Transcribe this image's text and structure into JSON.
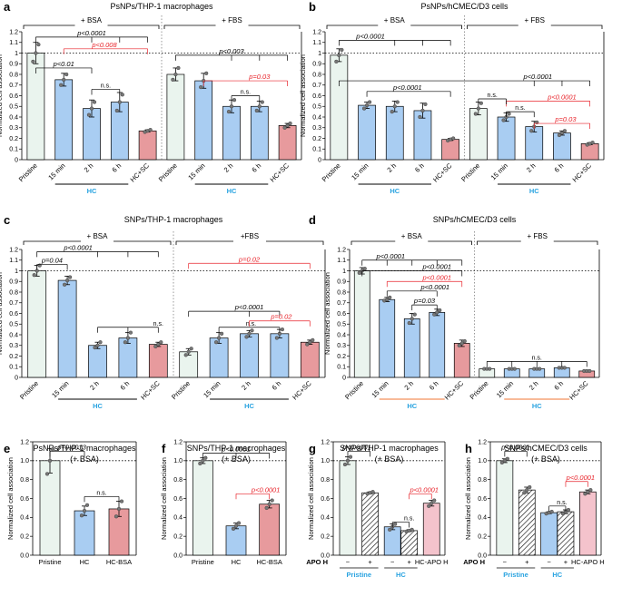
{
  "colors": {
    "pristine": "#eaf4ee",
    "hc": "#a9cdf2",
    "hcsc": "#e79a9d",
    "hcbsa": "#e79a9d",
    "hcapo": "#f4c3cc",
    "sig_black": "#000000",
    "sig_red": "#e8232a",
    "hc_label": "#29a3e0",
    "hc_underline_orange": "#f07533"
  },
  "chart_data": [
    {
      "id": "a",
      "panel_label": "a",
      "title": "PsNPs/THP-1 macrophages",
      "type": "bar",
      "ylabel": "Normalized cell association",
      "ylim": [
        0,
        1.2
      ],
      "yticks": [
        "0",
        "0.1",
        "0.2",
        "0.3",
        "0.4",
        "0.5",
        "0.6",
        "0.7",
        "0.8",
        "0.9",
        "1",
        "1.1",
        "1.2"
      ],
      "groups": [
        {
          "label": "+ BSA"
        },
        {
          "label": "+ FBS"
        }
      ],
      "categories": [
        "Pristine",
        "15 min",
        "2 h",
        "6 h",
        "HC+SC",
        "Pristine",
        "15 min",
        "2 h",
        "6 h",
        "HC+SC"
      ],
      "values": [
        1.0,
        0.75,
        0.48,
        0.54,
        0.27,
        0.8,
        0.74,
        0.5,
        0.5,
        0.32
      ],
      "sd": [
        0.1,
        0.06,
        0.08,
        0.09,
        0.01,
        0.06,
        0.07,
        0.06,
        0.05,
        0.02
      ],
      "points": [
        [
          0.92,
          1.0,
          1.08
        ],
        [
          0.7,
          0.75,
          0.8
        ],
        [
          0.42,
          0.48,
          0.54
        ],
        [
          0.46,
          0.54,
          0.61
        ],
        [
          0.26,
          0.27,
          0.28
        ],
        [
          0.75,
          0.8,
          0.86
        ],
        [
          0.68,
          0.74,
          0.81
        ],
        [
          0.45,
          0.5,
          0.56
        ],
        [
          0.46,
          0.5,
          0.54
        ],
        [
          0.3,
          0.32,
          0.34
        ]
      ],
      "color_keys": [
        "pristine",
        "hc",
        "hc",
        "hc",
        "hcsc",
        "pristine",
        "hc",
        "hc",
        "hc",
        "hcsc"
      ],
      "hatched": [
        false,
        false,
        false,
        false,
        false,
        false,
        false,
        false,
        false,
        false
      ],
      "hc_label": "HC",
      "annotations": [
        {
          "text": "p<0.0001",
          "color": "black"
        },
        {
          "text": "p<0.008",
          "color": "red"
        },
        {
          "text": "p<0.01",
          "color": "black"
        },
        {
          "text": "n.s.",
          "color": "black"
        },
        {
          "text": "p<0.003",
          "color": "black"
        },
        {
          "text": "p=0.03",
          "color": "red"
        },
        {
          "text": "n.s.",
          "color": "black"
        }
      ]
    },
    {
      "id": "b",
      "panel_label": "b",
      "title": "PsNPs/hCMEC/D3 cells",
      "type": "bar",
      "ylabel": "Normalized cell association",
      "ylim": [
        0,
        1.2
      ],
      "yticks": [
        "0",
        "0.1",
        "0.2",
        "0.3",
        "0.4",
        "0.5",
        "0.6",
        "0.7",
        "0.8",
        "0.9",
        "1",
        "1.1",
        "1.2"
      ],
      "groups": [
        {
          "label": "+ BSA"
        },
        {
          "label": "+ FBS"
        }
      ],
      "categories": [
        "Pristine",
        "15 min",
        "2 h",
        "6 h",
        "HC+SC",
        "Pristine",
        "15 min",
        "2 h",
        "6 h",
        "HC+SC"
      ],
      "values": [
        0.98,
        0.51,
        0.5,
        0.46,
        0.19,
        0.48,
        0.4,
        0.31,
        0.25,
        0.15
      ],
      "sd": [
        0.06,
        0.03,
        0.05,
        0.07,
        0.01,
        0.06,
        0.04,
        0.05,
        0.02,
        0.01
      ],
      "points": [
        [
          0.92,
          0.98,
          1.03
        ],
        [
          0.48,
          0.51,
          0.54
        ],
        [
          0.45,
          0.5,
          0.54
        ],
        [
          0.4,
          0.46,
          0.52
        ],
        [
          0.18,
          0.19,
          0.2
        ],
        [
          0.43,
          0.48,
          0.53
        ],
        [
          0.37,
          0.4,
          0.43
        ],
        [
          0.27,
          0.31,
          0.35
        ],
        [
          0.23,
          0.25,
          0.27
        ],
        [
          0.14,
          0.15,
          0.16
        ]
      ],
      "color_keys": [
        "pristine",
        "hc",
        "hc",
        "hc",
        "hcsc",
        "pristine",
        "hc",
        "hc",
        "hc",
        "hcsc"
      ],
      "hatched": [
        false,
        false,
        false,
        false,
        false,
        false,
        false,
        false,
        false,
        false
      ],
      "hc_label": "HC",
      "annotations": [
        {
          "text": "p<0.0001",
          "color": "black"
        },
        {
          "text": "p<0.0001",
          "color": "black"
        },
        {
          "text": "p<0.0001",
          "color": "black"
        },
        {
          "text": "p<0.0001",
          "color": "red"
        },
        {
          "text": "n.s.",
          "color": "black"
        },
        {
          "text": "n.s.",
          "color": "black"
        },
        {
          "text": "p=0.03",
          "color": "red"
        }
      ]
    },
    {
      "id": "c",
      "panel_label": "c",
      "title": "SNPs/THP-1 macrophages",
      "type": "bar",
      "ylabel": "Normalized cell association",
      "ylim": [
        0,
        1.2
      ],
      "yticks": [
        "0",
        "0.1",
        "0.2",
        "0.3",
        "0.4",
        "0.5",
        "0.6",
        "0.7",
        "0.8",
        "0.9",
        "1",
        "1.1",
        "1.2"
      ],
      "groups": [
        {
          "label": "+ BSA"
        },
        {
          "label": "+FBS"
        }
      ],
      "categories": [
        "Pristine",
        "15 min",
        "2 h",
        "6 h",
        "HC+SC",
        "Pristine",
        "15 min",
        "2 h",
        "6 h",
        "HC+SC"
      ],
      "values": [
        1.0,
        0.91,
        0.3,
        0.37,
        0.31,
        0.24,
        0.37,
        0.41,
        0.41,
        0.33
      ],
      "sd": [
        0.05,
        0.04,
        0.03,
        0.05,
        0.02,
        0.03,
        0.05,
        0.03,
        0.04,
        0.02
      ],
      "points": [
        [
          0.96,
          1.0,
          1.05
        ],
        [
          0.87,
          0.91,
          0.94
        ],
        [
          0.28,
          0.3,
          0.33
        ],
        [
          0.33,
          0.37,
          0.42
        ],
        [
          0.29,
          0.31,
          0.33
        ],
        [
          0.21,
          0.24,
          0.27
        ],
        [
          0.33,
          0.37,
          0.41
        ],
        [
          0.38,
          0.41,
          0.44
        ],
        [
          0.37,
          0.41,
          0.45
        ],
        [
          0.31,
          0.33,
          0.35
        ]
      ],
      "color_keys": [
        "pristine",
        "hc",
        "hc",
        "hc",
        "hcsc",
        "pristine",
        "hc",
        "hc",
        "hc",
        "hcsc"
      ],
      "hatched": [
        false,
        false,
        false,
        false,
        false,
        false,
        false,
        false,
        false,
        false
      ],
      "hc_label": "HC",
      "annotations": [
        {
          "text": "p<0.0001",
          "color": "black"
        },
        {
          "text": "p=0.04",
          "color": "black"
        },
        {
          "text": "n.s.",
          "color": "black"
        },
        {
          "text": "p=0.02",
          "color": "red"
        },
        {
          "text": "p<0.0001",
          "color": "black"
        },
        {
          "text": "n.s.",
          "color": "black"
        },
        {
          "text": "p=0.02",
          "color": "red"
        }
      ]
    },
    {
      "id": "d",
      "panel_label": "d",
      "title": "SNPs/hCMEC/D3 cells",
      "type": "bar",
      "ylabel": "Normalized cell association",
      "ylim": [
        0,
        1.2
      ],
      "yticks": [
        "0",
        "0.1",
        "0.2",
        "0.3",
        "0.4",
        "0.5",
        "0.6",
        "0.7",
        "0.8",
        "0.9",
        "1",
        "1.1",
        "1.2"
      ],
      "groups": [
        {
          "label": "+ BSA"
        },
        {
          "label": "+ FBS"
        }
      ],
      "categories": [
        "Pristine",
        "15 min",
        "2 h",
        "6 h",
        "HC+SC",
        "Pristine",
        "15 min",
        "2 h",
        "6 h",
        "HC+SC"
      ],
      "values": [
        1.0,
        0.73,
        0.55,
        0.61,
        0.32,
        0.08,
        0.08,
        0.08,
        0.09,
        0.06
      ],
      "sd": [
        0.03,
        0.02,
        0.05,
        0.03,
        0.03,
        0.005,
        0.005,
        0.005,
        0.005,
        0.005
      ],
      "points": [
        [
          0.98,
          1.0,
          1.02
        ],
        [
          0.72,
          0.73,
          0.75
        ],
        [
          0.51,
          0.55,
          0.59
        ],
        [
          0.59,
          0.61,
          0.63
        ],
        [
          0.3,
          0.32,
          0.34
        ],
        [
          0.08,
          0.08,
          0.08
        ],
        [
          0.08,
          0.08,
          0.08
        ],
        [
          0.08,
          0.08,
          0.08
        ],
        [
          0.09,
          0.09,
          0.09
        ],
        [
          0.06,
          0.06,
          0.06
        ]
      ],
      "color_keys": [
        "pristine",
        "hc",
        "hc",
        "hc",
        "hcsc",
        "pristine",
        "hc",
        "hc",
        "hc",
        "hcsc"
      ],
      "hatched": [
        false,
        false,
        false,
        false,
        false,
        false,
        false,
        false,
        false,
        false
      ],
      "hc_label": "HC",
      "annotations": [
        {
          "text": "p<0.0001",
          "color": "black"
        },
        {
          "text": "p<0.0001",
          "color": "red"
        },
        {
          "text": "p<0.0001",
          "color": "black"
        },
        {
          "text": "p=0.03",
          "color": "black"
        },
        {
          "text": "p<0.0001",
          "color": "black"
        },
        {
          "text": "n.s.",
          "color": "black"
        }
      ]
    },
    {
      "id": "e",
      "panel_label": "e",
      "title": "PsNPs/THP-1 macrophages",
      "subtitle": "(+ BSA)",
      "type": "bar",
      "ylabel": "Normalized cell association",
      "ylim": [
        0,
        1.2
      ],
      "yticks": [
        "0.0",
        "0.2",
        "0.4",
        "0.6",
        "0.8",
        "1.0",
        "1.2"
      ],
      "categories": [
        "Pristine",
        "HC",
        "HC-BSA"
      ],
      "values": [
        1.0,
        0.47,
        0.49
      ],
      "sd": [
        0.13,
        0.05,
        0.08
      ],
      "points": [
        [
          0.86,
          1.0,
          1.12
        ],
        [
          0.42,
          0.47,
          0.53
        ],
        [
          0.41,
          0.49,
          0.57
        ]
      ],
      "color_keys": [
        "pristine",
        "hc",
        "hcbsa"
      ],
      "hatched": [
        false,
        false,
        false
      ],
      "annotations": [
        {
          "text": "p=0.0013",
          "color": "black"
        },
        {
          "text": "n.s.",
          "color": "black"
        }
      ]
    },
    {
      "id": "f",
      "panel_label": "f",
      "title": "SNPs/THP-1 macrophages",
      "subtitle": "(+ BSA)",
      "type": "bar",
      "ylabel": "Normalized cell association",
      "ylim": [
        0,
        1.2
      ],
      "yticks": [
        "0.0",
        "0.2",
        "0.4",
        "0.6",
        "0.8",
        "1.0",
        "1.2"
      ],
      "categories": [
        "Pristine",
        "HC",
        "HC-BSA"
      ],
      "values": [
        1.0,
        0.31,
        0.54
      ],
      "sd": [
        0.03,
        0.03,
        0.04
      ],
      "points": [
        [
          0.97,
          1.0,
          1.03
        ],
        [
          0.28,
          0.31,
          0.34
        ],
        [
          0.5,
          0.54,
          0.58
        ]
      ],
      "color_keys": [
        "pristine",
        "hc",
        "hcbsa"
      ],
      "hatched": [
        false,
        false,
        false
      ],
      "annotations": [
        {
          "text": "p<0.0001",
          "color": "black"
        },
        {
          "text": "p<0.0001",
          "color": "red"
        }
      ]
    },
    {
      "id": "g",
      "panel_label": "g",
      "title": "SNPs/THP-1 macrophages",
      "subtitle": "(+ BSA)",
      "type": "bar",
      "ylabel": "Normalized cell association",
      "ylim": [
        0,
        1.2
      ],
      "yticks": [
        "0.0",
        "0.2",
        "0.4",
        "0.6",
        "0.8",
        "1.0",
        "1.2"
      ],
      "categories": [
        "−",
        "+",
        "−",
        "+",
        "HC-APO H"
      ],
      "apo_label": "APO H",
      "values": [
        1.0,
        0.66,
        0.3,
        0.26,
        0.55
      ],
      "sd": [
        0.04,
        0.01,
        0.03,
        0.01,
        0.03
      ],
      "points": [
        [
          0.96,
          1.0,
          1.04
        ],
        [
          0.65,
          0.66,
          0.67
        ],
        [
          0.27,
          0.3,
          0.33
        ],
        [
          0.25,
          0.26,
          0.27
        ],
        [
          0.52,
          0.55,
          0.58
        ]
      ],
      "color_keys": [
        "pristine",
        "pristine",
        "hc",
        "hc",
        "hcapo"
      ],
      "hatched": [
        false,
        true,
        false,
        true,
        false
      ],
      "group_labels": [
        "Pristine",
        "HC"
      ],
      "annotations": [
        {
          "text": "p<0.0001",
          "color": "black"
        },
        {
          "text": "n.s.",
          "color": "black"
        },
        {
          "text": "p<0.0001",
          "color": "black"
        }
      ]
    },
    {
      "id": "h",
      "panel_label": "h",
      "title": "SNPs/hCMEC/D3 cells",
      "subtitle": "(+ BSA)",
      "type": "bar",
      "ylabel": "Normalized cell association",
      "ylim": [
        0,
        1.2
      ],
      "yticks": [
        "0.0",
        "0.2",
        "0.4",
        "0.6",
        "0.8",
        "1.0",
        "1.2"
      ],
      "categories": [
        "−",
        "+",
        "−",
        "+",
        "HC-APO H"
      ],
      "apo_label": "APO H",
      "values": [
        1.0,
        0.69,
        0.45,
        0.46,
        0.67
      ],
      "sd": [
        0.02,
        0.03,
        0.01,
        0.02,
        0.02
      ],
      "points": [
        [
          0.98,
          1.0,
          1.02
        ],
        [
          0.66,
          0.69,
          0.72
        ],
        [
          0.44,
          0.45,
          0.46
        ],
        [
          0.44,
          0.46,
          0.48
        ],
        [
          0.65,
          0.67,
          0.69
        ]
      ],
      "color_keys": [
        "pristine",
        "pristine",
        "hc",
        "hc",
        "hcapo"
      ],
      "hatched": [
        false,
        true,
        false,
        true,
        false
      ],
      "group_labels": [
        "Pristine",
        "HC"
      ],
      "annotations": [
        {
          "text": "p<0.0001",
          "color": "black"
        },
        {
          "text": "n.s.",
          "color": "black"
        },
        {
          "text": "p<0.0001",
          "color": "red"
        }
      ]
    }
  ]
}
